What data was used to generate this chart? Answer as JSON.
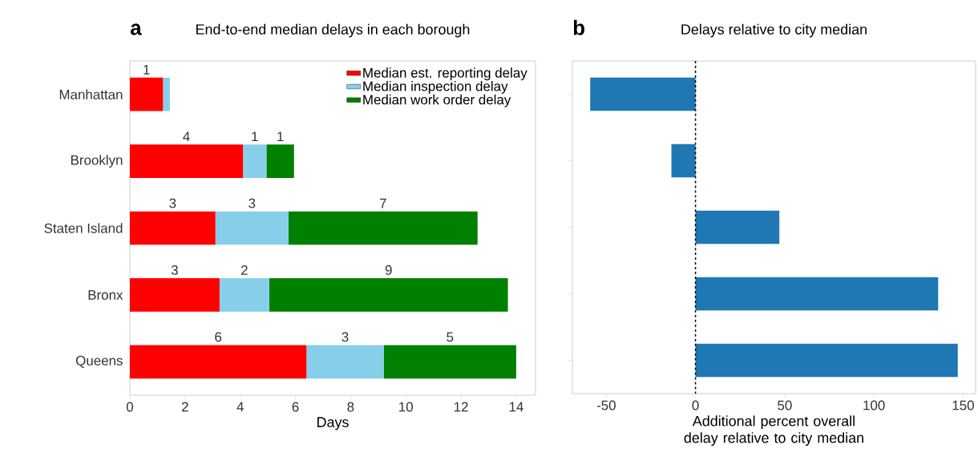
{
  "chart_data": [
    {
      "type": "bar",
      "orientation": "horizontal",
      "stacked": true,
      "title": "End-to-end median delays in each borough",
      "xlabel": "Days",
      "categories": [
        "Manhattan",
        "Brooklyn",
        "Staten Island",
        "Bronx",
        "Queens"
      ],
      "series": [
        {
          "name": "Median est. reporting delay",
          "color": "#ff0000",
          "values": [
            1.2,
            4.1,
            3.1,
            3.25,
            6.4
          ],
          "value_labels": [
            "1",
            "4",
            "3",
            "3",
            "6"
          ]
        },
        {
          "name": "Median inspection delay",
          "color": "#87ceeb",
          "values": [
            0.25,
            0.85,
            2.65,
            1.8,
            2.8
          ],
          "value_labels": [
            null,
            "1",
            "3",
            "2",
            "3"
          ]
        },
        {
          "name": "Median work order delay",
          "color": "#008000",
          "values": [
            null,
            1.0,
            6.85,
            8.65,
            4.8
          ],
          "value_labels": [
            null,
            "1",
            "7",
            "9",
            "5"
          ]
        }
      ],
      "xlim": [
        0,
        14.7
      ],
      "xticks": [
        0,
        2,
        4,
        6,
        8,
        10,
        12,
        14
      ],
      "legend": "top right",
      "annotations": [
        "a"
      ]
    },
    {
      "type": "bar",
      "orientation": "horizontal",
      "title": "Delays relative to city median",
      "xlabel": "Additional percent overall delay relative to city median",
      "categories": [
        null,
        null,
        null,
        null,
        null
      ],
      "series": [
        {
          "color": "#1f77b4",
          "values": [
            -59,
            -13.5,
            47,
            136,
            147
          ]
        }
      ],
      "xlim": [
        -69,
        157
      ],
      "xticks": [
        -50,
        0,
        50,
        100,
        150
      ],
      "tick_labels": "x",
      "ref_lines": [
        {
          "axis": "x",
          "value": 0,
          "color": "#000000",
          "line_style": "dashed"
        }
      ],
      "annotations": [
        "b"
      ]
    }
  ]
}
